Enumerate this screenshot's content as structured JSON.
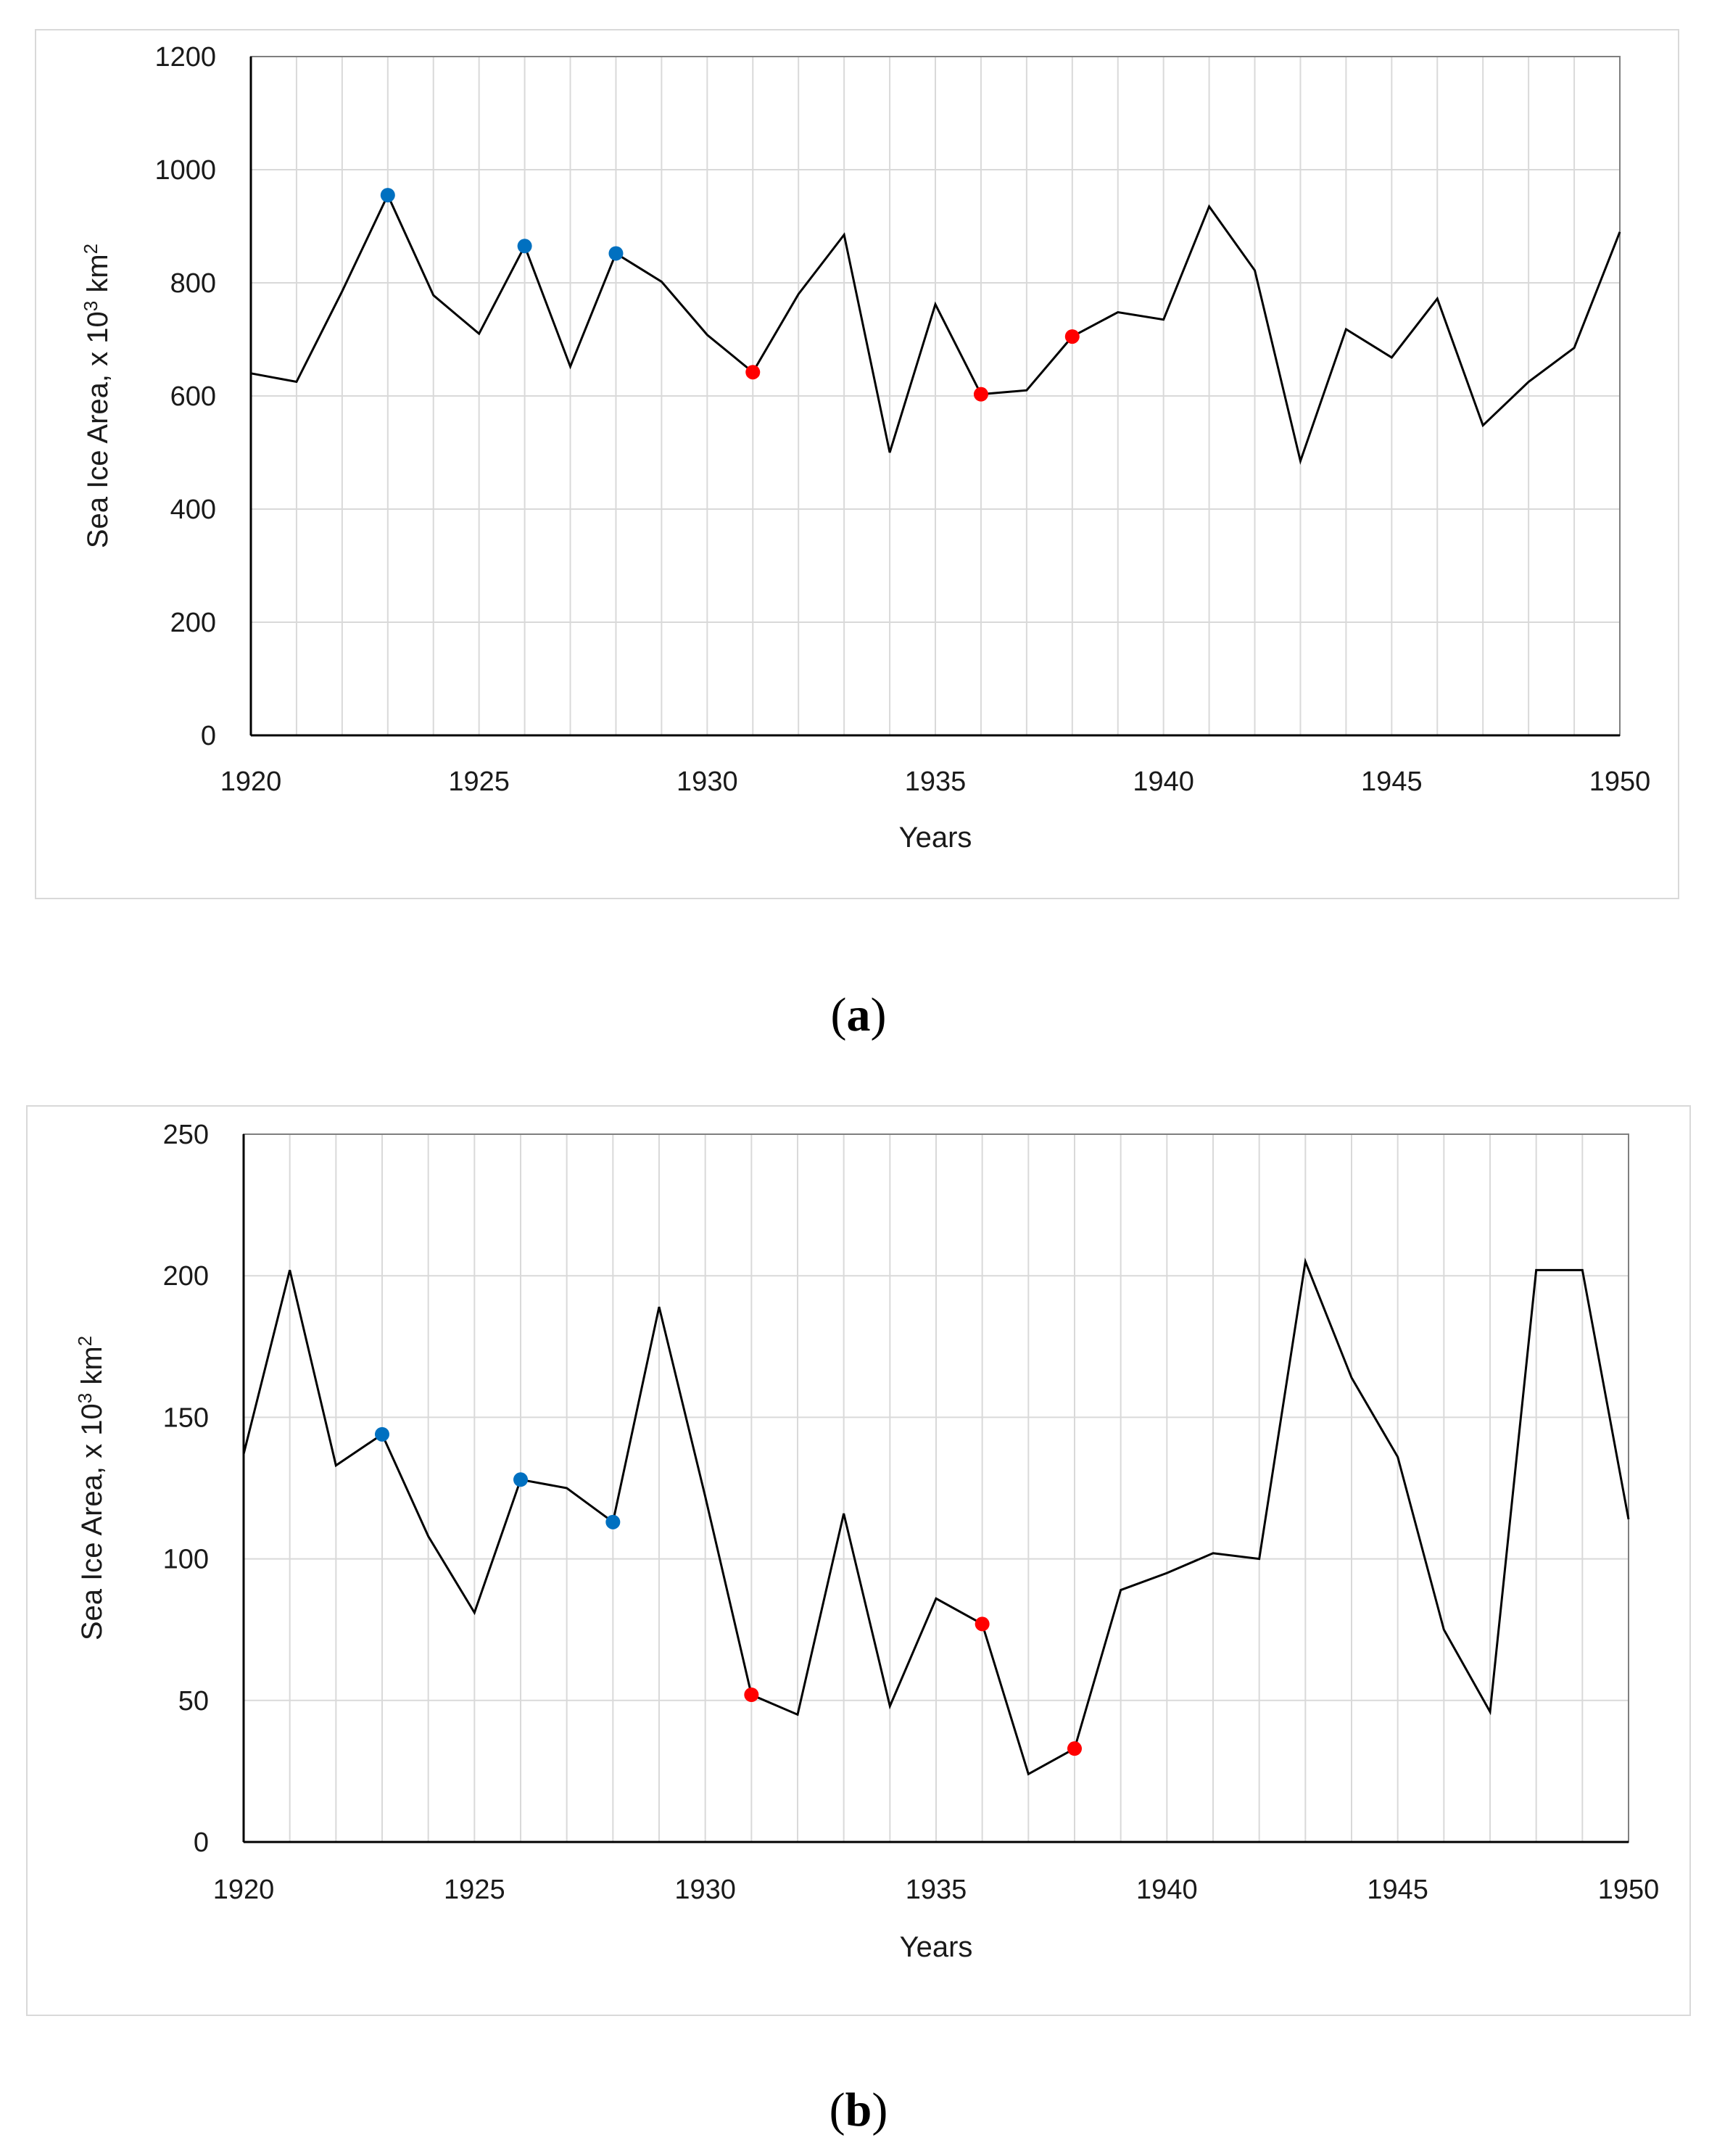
{
  "chart_data": [
    {
      "type": "line",
      "panel": "(a)",
      "panel_letter": "a",
      "xlabel": "Years",
      "ylabel": "Sea Ice Area, x 10",
      "ylabel_exp": "3",
      "ylabel_unit": " km",
      "ylabel_unit_exp": "2",
      "xlim": [
        1920,
        1950
      ],
      "ylim": [
        0,
        1200
      ],
      "xticks": [
        1920,
        1925,
        1930,
        1935,
        1940,
        1945,
        1950
      ],
      "yticks": [
        0,
        200,
        400,
        600,
        800,
        1000,
        1200
      ],
      "grid": true,
      "x": [
        1920,
        1921,
        1922,
        1923,
        1924,
        1925,
        1926,
        1927,
        1928,
        1929,
        1930,
        1931,
        1932,
        1933,
        1934,
        1935,
        1936,
        1937,
        1938,
        1939,
        1940,
        1941,
        1942,
        1943,
        1944,
        1945,
        1946,
        1947,
        1948,
        1949,
        1950
      ],
      "y": [
        640,
        625,
        785,
        955,
        778,
        710,
        865,
        652,
        852,
        802,
        708,
        642,
        780,
        885,
        500,
        762,
        603,
        610,
        705,
        748,
        735,
        935,
        822,
        485,
        718,
        668,
        772,
        548,
        625,
        685,
        890
      ],
      "line_color": "#000000",
      "markers": [
        {
          "x": 1923,
          "y": 955,
          "color": "#0070c0"
        },
        {
          "x": 1926,
          "y": 865,
          "color": "#0070c0"
        },
        {
          "x": 1928,
          "y": 852,
          "color": "#0070c0"
        },
        {
          "x": 1931,
          "y": 642,
          "color": "#ff0000"
        },
        {
          "x": 1936,
          "y": 603,
          "color": "#ff0000"
        },
        {
          "x": 1938,
          "y": 705,
          "color": "#ff0000"
        }
      ]
    },
    {
      "type": "line",
      "panel": "(b)",
      "panel_letter": "b",
      "xlabel": "Years",
      "ylabel": "Sea Ice Area, x 10",
      "ylabel_exp": "3",
      "ylabel_unit": " km",
      "ylabel_unit_exp": "2",
      "xlim": [
        1920,
        1950
      ],
      "ylim": [
        0,
        250
      ],
      "xticks": [
        1920,
        1925,
        1930,
        1935,
        1940,
        1945,
        1950
      ],
      "yticks": [
        0,
        50,
        100,
        150,
        200,
        250
      ],
      "grid": true,
      "x": [
        1920,
        1921,
        1922,
        1923,
        1924,
        1925,
        1926,
        1927,
        1928,
        1929,
        1930,
        1931,
        1932,
        1933,
        1934,
        1935,
        1936,
        1937,
        1938,
        1939,
        1940,
        1941,
        1942,
        1943,
        1944,
        1945,
        1946,
        1947,
        1948,
        1949,
        1950
      ],
      "y": [
        137,
        202,
        133,
        144,
        108,
        81,
        128,
        125,
        113,
        189,
        122,
        52,
        45,
        116,
        48,
        86,
        77,
        24,
        33,
        89,
        95,
        102,
        100,
        205,
        164,
        136,
        75,
        46,
        202,
        202,
        114
      ],
      "line_color": "#000000",
      "markers": [
        {
          "x": 1923,
          "y": 144,
          "color": "#0070c0"
        },
        {
          "x": 1926,
          "y": 128,
          "color": "#0070c0"
        },
        {
          "x": 1928,
          "y": 113,
          "color": "#0070c0"
        },
        {
          "x": 1931,
          "y": 52,
          "color": "#ff0000"
        },
        {
          "x": 1936,
          "y": 77,
          "color": "#ff0000"
        },
        {
          "x": 1938,
          "y": 33,
          "color": "#ff0000"
        }
      ]
    }
  ]
}
